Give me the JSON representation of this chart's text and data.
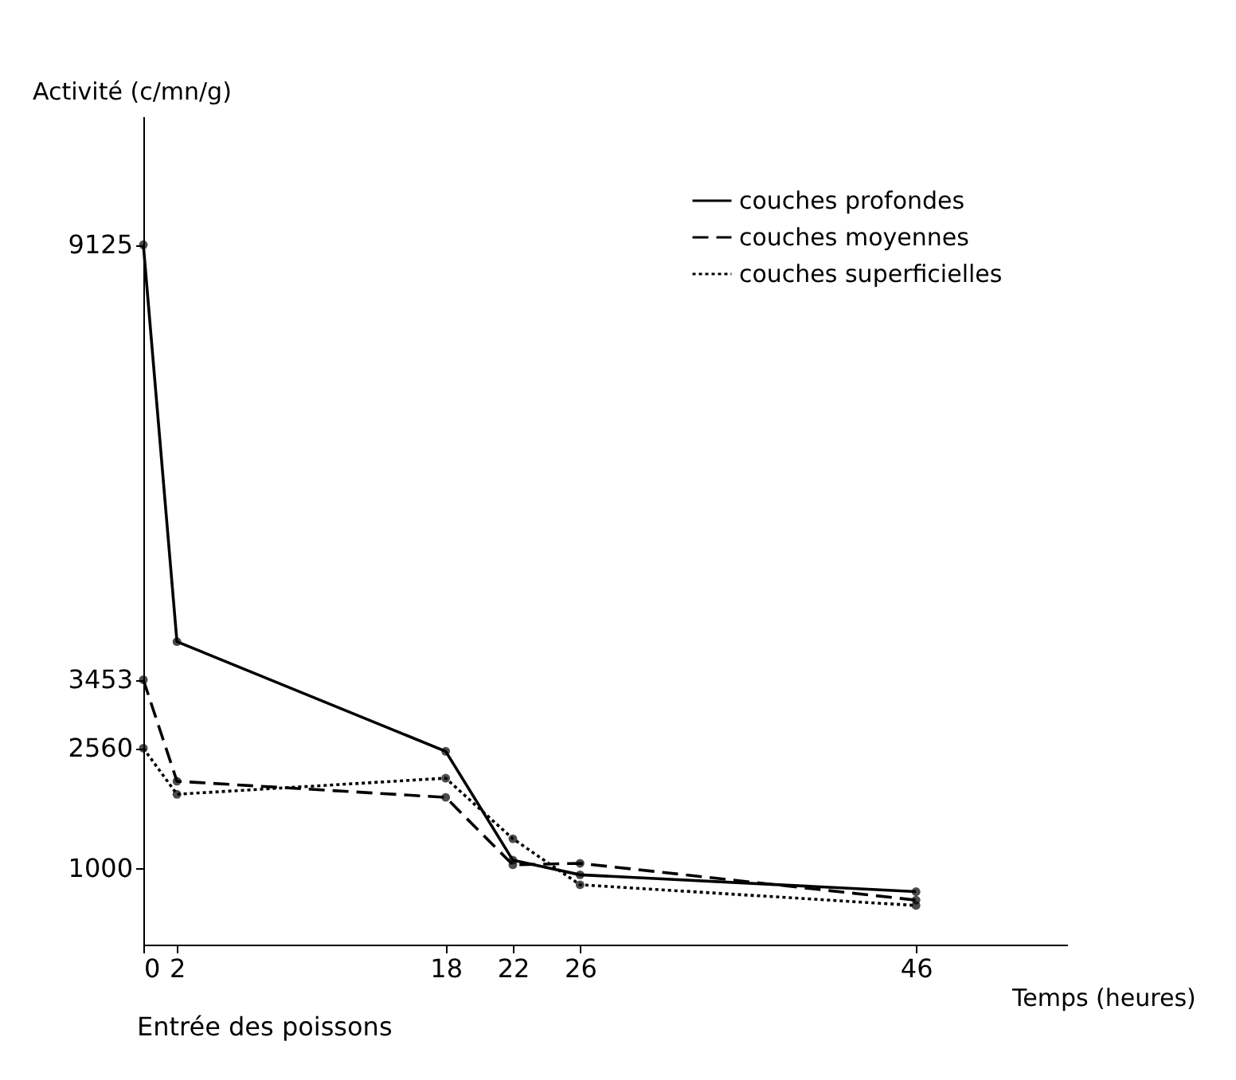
{
  "chart_data": {
    "type": "line",
    "xlabel": "Temps (heures)",
    "ylabel": "Activité (c/mn/g)",
    "x": [
      0,
      2,
      18,
      22,
      26,
      46
    ],
    "xlim": [
      0,
      55
    ],
    "xticks": [
      0,
      2,
      18,
      22,
      26,
      46
    ],
    "ylim": [
      0,
      10800
    ],
    "yticks": [
      1000,
      2560,
      3453,
      9125
    ],
    "series": [
      {
        "name": "couches profondes",
        "color": "#000000",
        "line_style": "solid",
        "values": [
          9125,
          3950,
          2520,
          1100,
          910,
          690
        ]
      },
      {
        "name": "couches moyennes",
        "color": "#000000",
        "line_style": "dashed",
        "values": [
          3453,
          2130,
          1920,
          1040,
          1060,
          580
        ]
      },
      {
        "name": "couches superficielles",
        "color": "#000000",
        "line_style": "dotted",
        "values": [
          2560,
          1960,
          2170,
          1380,
          780,
          510
        ]
      }
    ],
    "marker": "circle",
    "legend": "top right",
    "grid": false,
    "annotations": [
      "Entrée des poissons"
    ]
  }
}
